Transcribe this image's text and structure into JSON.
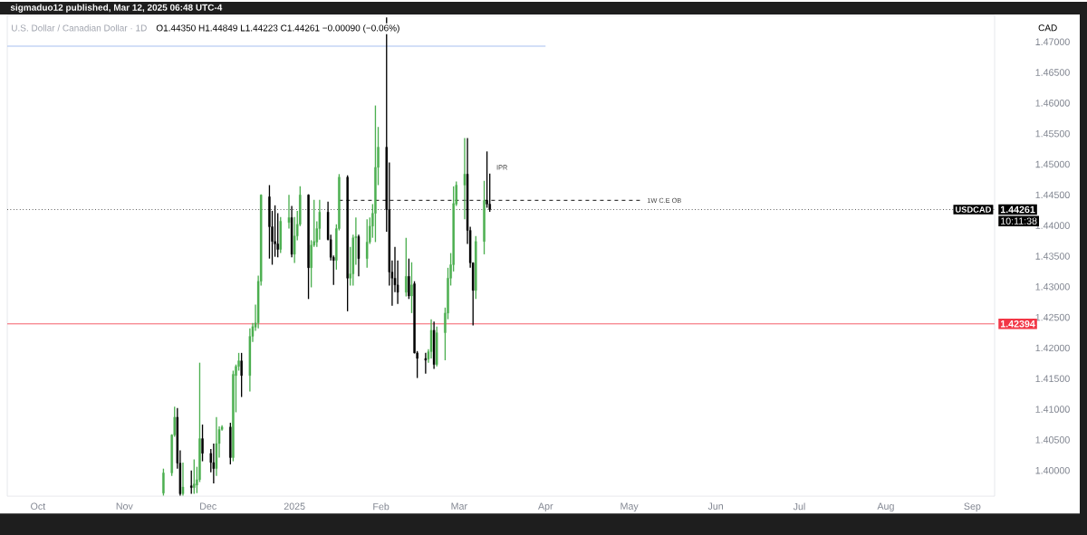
{
  "chart_data": {
    "type": "candlestick",
    "title": "U.S. Dollar / Canadian Dollar · 1D",
    "subtitle": "sigmaduo12 published, Mar 12, 2025 06:48 UTC-4",
    "ylabel": "CAD",
    "x": [
      "2024-11-15",
      "2024-11-18",
      "2024-11-19",
      "2024-11-20",
      "2024-11-21",
      "2024-11-22",
      "2024-11-25",
      "2024-11-26",
      "2024-11-27",
      "2024-11-28",
      "2024-11-29",
      "2024-12-02",
      "2024-12-03",
      "2024-12-04",
      "2024-12-05",
      "2024-12-06",
      "2024-12-09",
      "2024-12-10",
      "2024-12-11",
      "2024-12-12",
      "2024-12-13",
      "2024-12-16",
      "2024-12-17",
      "2024-12-18",
      "2024-12-19",
      "2024-12-20",
      "2024-12-23",
      "2024-12-24",
      "2024-12-25",
      "2024-12-26",
      "2024-12-27",
      "2024-12-30",
      "2024-12-31",
      "2025-01-01",
      "2025-01-02",
      "2025-01-03",
      "2025-01-06",
      "2025-01-07",
      "2025-01-08",
      "2025-01-09",
      "2025-01-10",
      "2025-01-13",
      "2025-01-14",
      "2025-01-15",
      "2025-01-16",
      "2025-01-17",
      "2025-01-20",
      "2025-01-21",
      "2025-01-22",
      "2025-01-23",
      "2025-01-24",
      "2025-01-27",
      "2025-01-28",
      "2025-01-29",
      "2025-01-30",
      "2025-01-31",
      "2025-02-03",
      "2025-02-04",
      "2025-02-05",
      "2025-02-06",
      "2025-02-07",
      "2025-02-10",
      "2025-02-11",
      "2025-02-12",
      "2025-02-13",
      "2025-02-14",
      "2025-02-17",
      "2025-02-18",
      "2025-02-19",
      "2025-02-20",
      "2025-02-21",
      "2025-02-24",
      "2025-02-25",
      "2025-02-26",
      "2025-02-27",
      "2025-02-28",
      "2025-03-03",
      "2025-03-04",
      "2025-03-05",
      "2025-03-06",
      "2025-03-07",
      "2025-03-10",
      "2025-03-11",
      "2025-03-12"
    ],
    "ohlc": [
      [
        1.3963,
        1.4003,
        1.3959,
        1.3996
      ],
      [
        1.3996,
        1.4059,
        1.3991,
        1.4058
      ],
      [
        1.4058,
        1.4104,
        1.4055,
        1.4087
      ],
      [
        1.4087,
        1.4102,
        1.4003,
        1.4012
      ],
      [
        1.4012,
        1.4033,
        1.3959,
        1.3962
      ],
      [
        1.3962,
        1.4013,
        1.3959,
        1.3973
      ],
      [
        1.3975,
        1.4,
        1.3962,
        1.3972
      ],
      [
        1.3972,
        1.4018,
        1.3962,
        1.3978
      ],
      [
        1.3976,
        1.4006,
        1.3963,
        1.3985
      ],
      [
        1.3985,
        1.4176,
        1.3981,
        1.4052
      ],
      [
        1.4052,
        1.4075,
        1.4015,
        1.4028
      ],
      [
        1.4028,
        1.4035,
        1.3997,
        1.4013
      ],
      [
        1.4013,
        1.4044,
        1.3979,
        1.4003
      ],
      [
        1.4003,
        1.4087,
        1.3991,
        1.4044
      ],
      [
        1.4044,
        1.4072,
        1.4021,
        1.4067
      ],
      [
        1.4067,
        1.4074,
        1.4065,
        1.4071
      ],
      [
        1.4071,
        1.4078,
        1.401,
        1.4021
      ],
      [
        1.4021,
        1.4163,
        1.4015,
        1.4157
      ],
      [
        1.4155,
        1.4173,
        1.4095,
        1.417
      ],
      [
        1.417,
        1.4192,
        1.4163,
        1.4179
      ],
      [
        1.4179,
        1.4192,
        1.412,
        1.4155
      ],
      [
        1.4155,
        1.4232,
        1.4129,
        1.4219
      ],
      [
        1.4219,
        1.4241,
        1.421,
        1.4235
      ],
      [
        1.4234,
        1.4271,
        1.4228,
        1.4241
      ],
      [
        1.4241,
        1.4318,
        1.4232,
        1.4309
      ],
      [
        1.4309,
        1.4451,
        1.4302,
        1.445
      ],
      [
        1.4447,
        1.4466,
        1.4346,
        1.4398
      ],
      [
        1.4398,
        1.4424,
        1.4336,
        1.4374
      ],
      [
        1.4374,
        1.4433,
        1.4349,
        1.437
      ],
      [
        1.437,
        1.442,
        1.4348,
        1.4361
      ],
      [
        1.4361,
        1.4414,
        1.4355,
        1.4407
      ],
      [
        1.4405,
        1.445,
        1.4395,
        1.4413
      ],
      [
        1.4413,
        1.4432,
        1.4348,
        1.4353
      ],
      [
        1.4353,
        1.4414,
        1.4339,
        1.4383
      ],
      [
        1.4383,
        1.4424,
        1.4376,
        1.4402
      ],
      [
        1.4402,
        1.4464,
        1.4399,
        1.445
      ],
      [
        1.445,
        1.4451,
        1.428,
        1.4331
      ],
      [
        1.4331,
        1.4376,
        1.4299,
        1.4368
      ],
      [
        1.4368,
        1.4442,
        1.4365,
        1.4374
      ],
      [
        1.4373,
        1.4407,
        1.4365,
        1.4395
      ],
      [
        1.4395,
        1.4442,
        1.4377,
        1.4422
      ],
      [
        1.4422,
        1.4439,
        1.4376,
        1.4377
      ],
      [
        1.4377,
        1.4385,
        1.4343,
        1.4348
      ],
      [
        1.4348,
        1.4351,
        1.4303,
        1.4343
      ],
      [
        1.4343,
        1.4402,
        1.4328,
        1.4395
      ],
      [
        1.4395,
        1.4484,
        1.4392,
        1.4479
      ],
      [
        1.4479,
        1.4482,
        1.426,
        1.4314
      ],
      [
        1.4314,
        1.4365,
        1.4302,
        1.4321
      ],
      [
        1.4321,
        1.4385,
        1.4302,
        1.438
      ],
      [
        1.438,
        1.4413,
        1.4336,
        1.4382
      ],
      [
        1.4382,
        1.4385,
        1.4317,
        1.4346
      ],
      [
        1.4346,
        1.441,
        1.4331,
        1.4373
      ],
      [
        1.4373,
        1.4413,
        1.437,
        1.4399
      ],
      [
        1.4399,
        1.4435,
        1.438,
        1.442
      ],
      [
        1.442,
        1.4596,
        1.4373,
        1.4495
      ],
      [
        1.4495,
        1.4561,
        1.4466,
        1.4528
      ],
      [
        1.4528,
        1.474,
        1.439,
        1.4426
      ],
      [
        1.4426,
        1.4503,
        1.4302,
        1.4324
      ],
      [
        1.4324,
        1.4343,
        1.4269,
        1.4314
      ],
      [
        1.4314,
        1.4365,
        1.4291,
        1.4303
      ],
      [
        1.4303,
        1.4343,
        1.4272,
        1.4291
      ],
      [
        1.4291,
        1.438,
        1.4284,
        1.4317
      ],
      [
        1.4317,
        1.4346,
        1.428,
        1.4285
      ],
      [
        1.4285,
        1.434,
        1.4257,
        1.4303
      ],
      [
        1.4305,
        1.4309,
        1.4191,
        1.4192
      ],
      [
        1.4192,
        1.4195,
        1.4151,
        1.4183
      ],
      [
        1.4183,
        1.4192,
        1.4158,
        1.418
      ],
      [
        1.4182,
        1.4198,
        1.4176,
        1.4194
      ],
      [
        1.4194,
        1.4247,
        1.4183,
        1.4229
      ],
      [
        1.4229,
        1.4243,
        1.4166,
        1.4173
      ],
      [
        1.4173,
        1.4235,
        1.417,
        1.4225
      ],
      [
        1.4225,
        1.4266,
        1.418,
        1.4257
      ],
      [
        1.4257,
        1.4331,
        1.4247,
        1.4314
      ],
      [
        1.4314,
        1.4355,
        1.4302,
        1.4336
      ],
      [
        1.4336,
        1.4464,
        1.4325,
        1.4436
      ],
      [
        1.4435,
        1.4472,
        1.4432,
        1.4466
      ],
      [
        1.4466,
        1.4543,
        1.441,
        1.4484
      ],
      [
        1.4484,
        1.4543,
        1.437,
        1.4392
      ],
      [
        1.4392,
        1.4398,
        1.4331,
        1.4339
      ],
      [
        1.4339,
        1.434,
        1.4237,
        1.4294
      ],
      [
        1.4294,
        1.4383,
        1.428,
        1.4374
      ],
      [
        1.4374,
        1.4473,
        1.4353,
        1.4441
      ],
      [
        1.4441,
        1.4521,
        1.4429,
        1.4435
      ],
      [
        1.4435,
        1.44849,
        1.44223,
        1.44261
      ]
    ],
    "colors": [
      "#4caf50",
      "#4caf50",
      "#4caf50",
      "#000000",
      "#000000",
      "#4caf50",
      "#000000",
      "#4caf50",
      "#4caf50",
      "#4caf50",
      "#000000",
      "#000000",
      "#000000",
      "#4caf50",
      "#4caf50",
      "#4caf50",
      "#000000",
      "#4caf50",
      "#4caf50",
      "#4caf50",
      "#000000",
      "#4caf50",
      "#4caf50",
      "#4caf50",
      "#4caf50",
      "#4caf50",
      "#000000",
      "#000000",
      "#000000",
      "#000000",
      "#4caf50",
      "#4caf50",
      "#000000",
      "#4caf50",
      "#4caf50",
      "#4caf50",
      "#000000",
      "#4caf50",
      "#4caf50",
      "#4caf50",
      "#4caf50",
      "#000000",
      "#000000",
      "#000000",
      "#4caf50",
      "#4caf50",
      "#000000",
      "#4caf50",
      "#4caf50",
      "#4caf50",
      "#000000",
      "#4caf50",
      "#4caf50",
      "#4caf50",
      "#4caf50",
      "#4caf50",
      "#000000",
      "#000000",
      "#000000",
      "#000000",
      "#000000",
      "#4caf50",
      "#000000",
      "#4caf50",
      "#000000",
      "#000000",
      "#000000",
      "#4caf50",
      "#4caf50",
      "#000000",
      "#4caf50",
      "#4caf50",
      "#4caf50",
      "#4caf50",
      "#4caf50",
      "#4caf50",
      "#4caf50",
      "#000000",
      "#000000",
      "#000000",
      "#4caf50",
      "#4caf50",
      "#000000",
      "#000000"
    ],
    "series": [
      {
        "type": "line",
        "x": [
          "2024-09-20",
          "2025-04-01"
        ],
        "values": [
          1.4693,
          1.4693
        ],
        "color": "#a8bff0",
        "line_style": "solid"
      },
      {
        "type": "line",
        "x": [
          "2025-01-17",
          "2025-05-05"
        ],
        "values": [
          1.4441,
          1.4441
        ],
        "color": "#404040",
        "line_style": "dashed"
      }
    ],
    "ref_lines": [
      {
        "axis": "y",
        "value": 1.44261,
        "label": "1.44261",
        "color": "#000000",
        "line_style": "dotted"
      },
      {
        "axis": "y",
        "value": 1.42394,
        "label": "1.42394",
        "color": "#f23645",
        "line_style": "solid"
      }
    ],
    "annotations": [
      "O1.44350 H1.44849 L1.44223 C1.44261 −0.00090 (−0.06%)",
      "USDCAD",
      "10:11:38",
      {
        "text": "1W C.E OB",
        "x": "2025-05-05",
        "y": 1.4441
      },
      {
        "text": "IPR",
        "x": "2025-03-12",
        "y": 1.4495
      }
    ],
    "xlim": [
      "2024-09-20",
      "2025-09-09"
    ],
    "xticks": [
      {
        "value": "2024-10-01",
        "label": "Oct"
      },
      {
        "value": "2024-11-01",
        "label": "Nov"
      },
      {
        "value": "2024-12-01",
        "label": "Dec"
      },
      {
        "value": "2025-01-01",
        "label": "2025"
      },
      {
        "value": "2025-02-01",
        "label": "Feb"
      },
      {
        "value": "2025-03-01",
        "label": "Mar"
      },
      {
        "value": "2025-04-01",
        "label": "Apr"
      },
      {
        "value": "2025-05-01",
        "label": "May"
      },
      {
        "value": "2025-06-01",
        "label": "Jun"
      },
      {
        "value": "2025-07-01",
        "label": "Jul"
      },
      {
        "value": "2025-08-01",
        "label": "Aug"
      },
      {
        "value": "2025-09-01",
        "label": "Sep"
      }
    ],
    "ylim": [
      1.3958,
      1.4743
    ],
    "yticks": [
      {
        "value": 1.4,
        "label": "1.40000"
      },
      {
        "value": 1.405,
        "label": "1.40500"
      },
      {
        "value": 1.41,
        "label": "1.41000"
      },
      {
        "value": 1.415,
        "label": "1.41500"
      },
      {
        "value": 1.42,
        "label": "1.42000"
      },
      {
        "value": 1.425,
        "label": "1.42500"
      },
      {
        "value": 1.43,
        "label": "1.43000"
      },
      {
        "value": 1.435,
        "label": "1.43500"
      },
      {
        "value": 1.44,
        "label": "1.44000"
      },
      {
        "value": 1.445,
        "label": "1.44500"
      },
      {
        "value": 1.45,
        "label": "1.45000"
      },
      {
        "value": 1.455,
        "label": "1.45500"
      },
      {
        "value": 1.46,
        "label": "1.46000"
      },
      {
        "value": 1.465,
        "label": "1.46500"
      },
      {
        "value": 1.47,
        "label": "1.47000"
      }
    ]
  }
}
